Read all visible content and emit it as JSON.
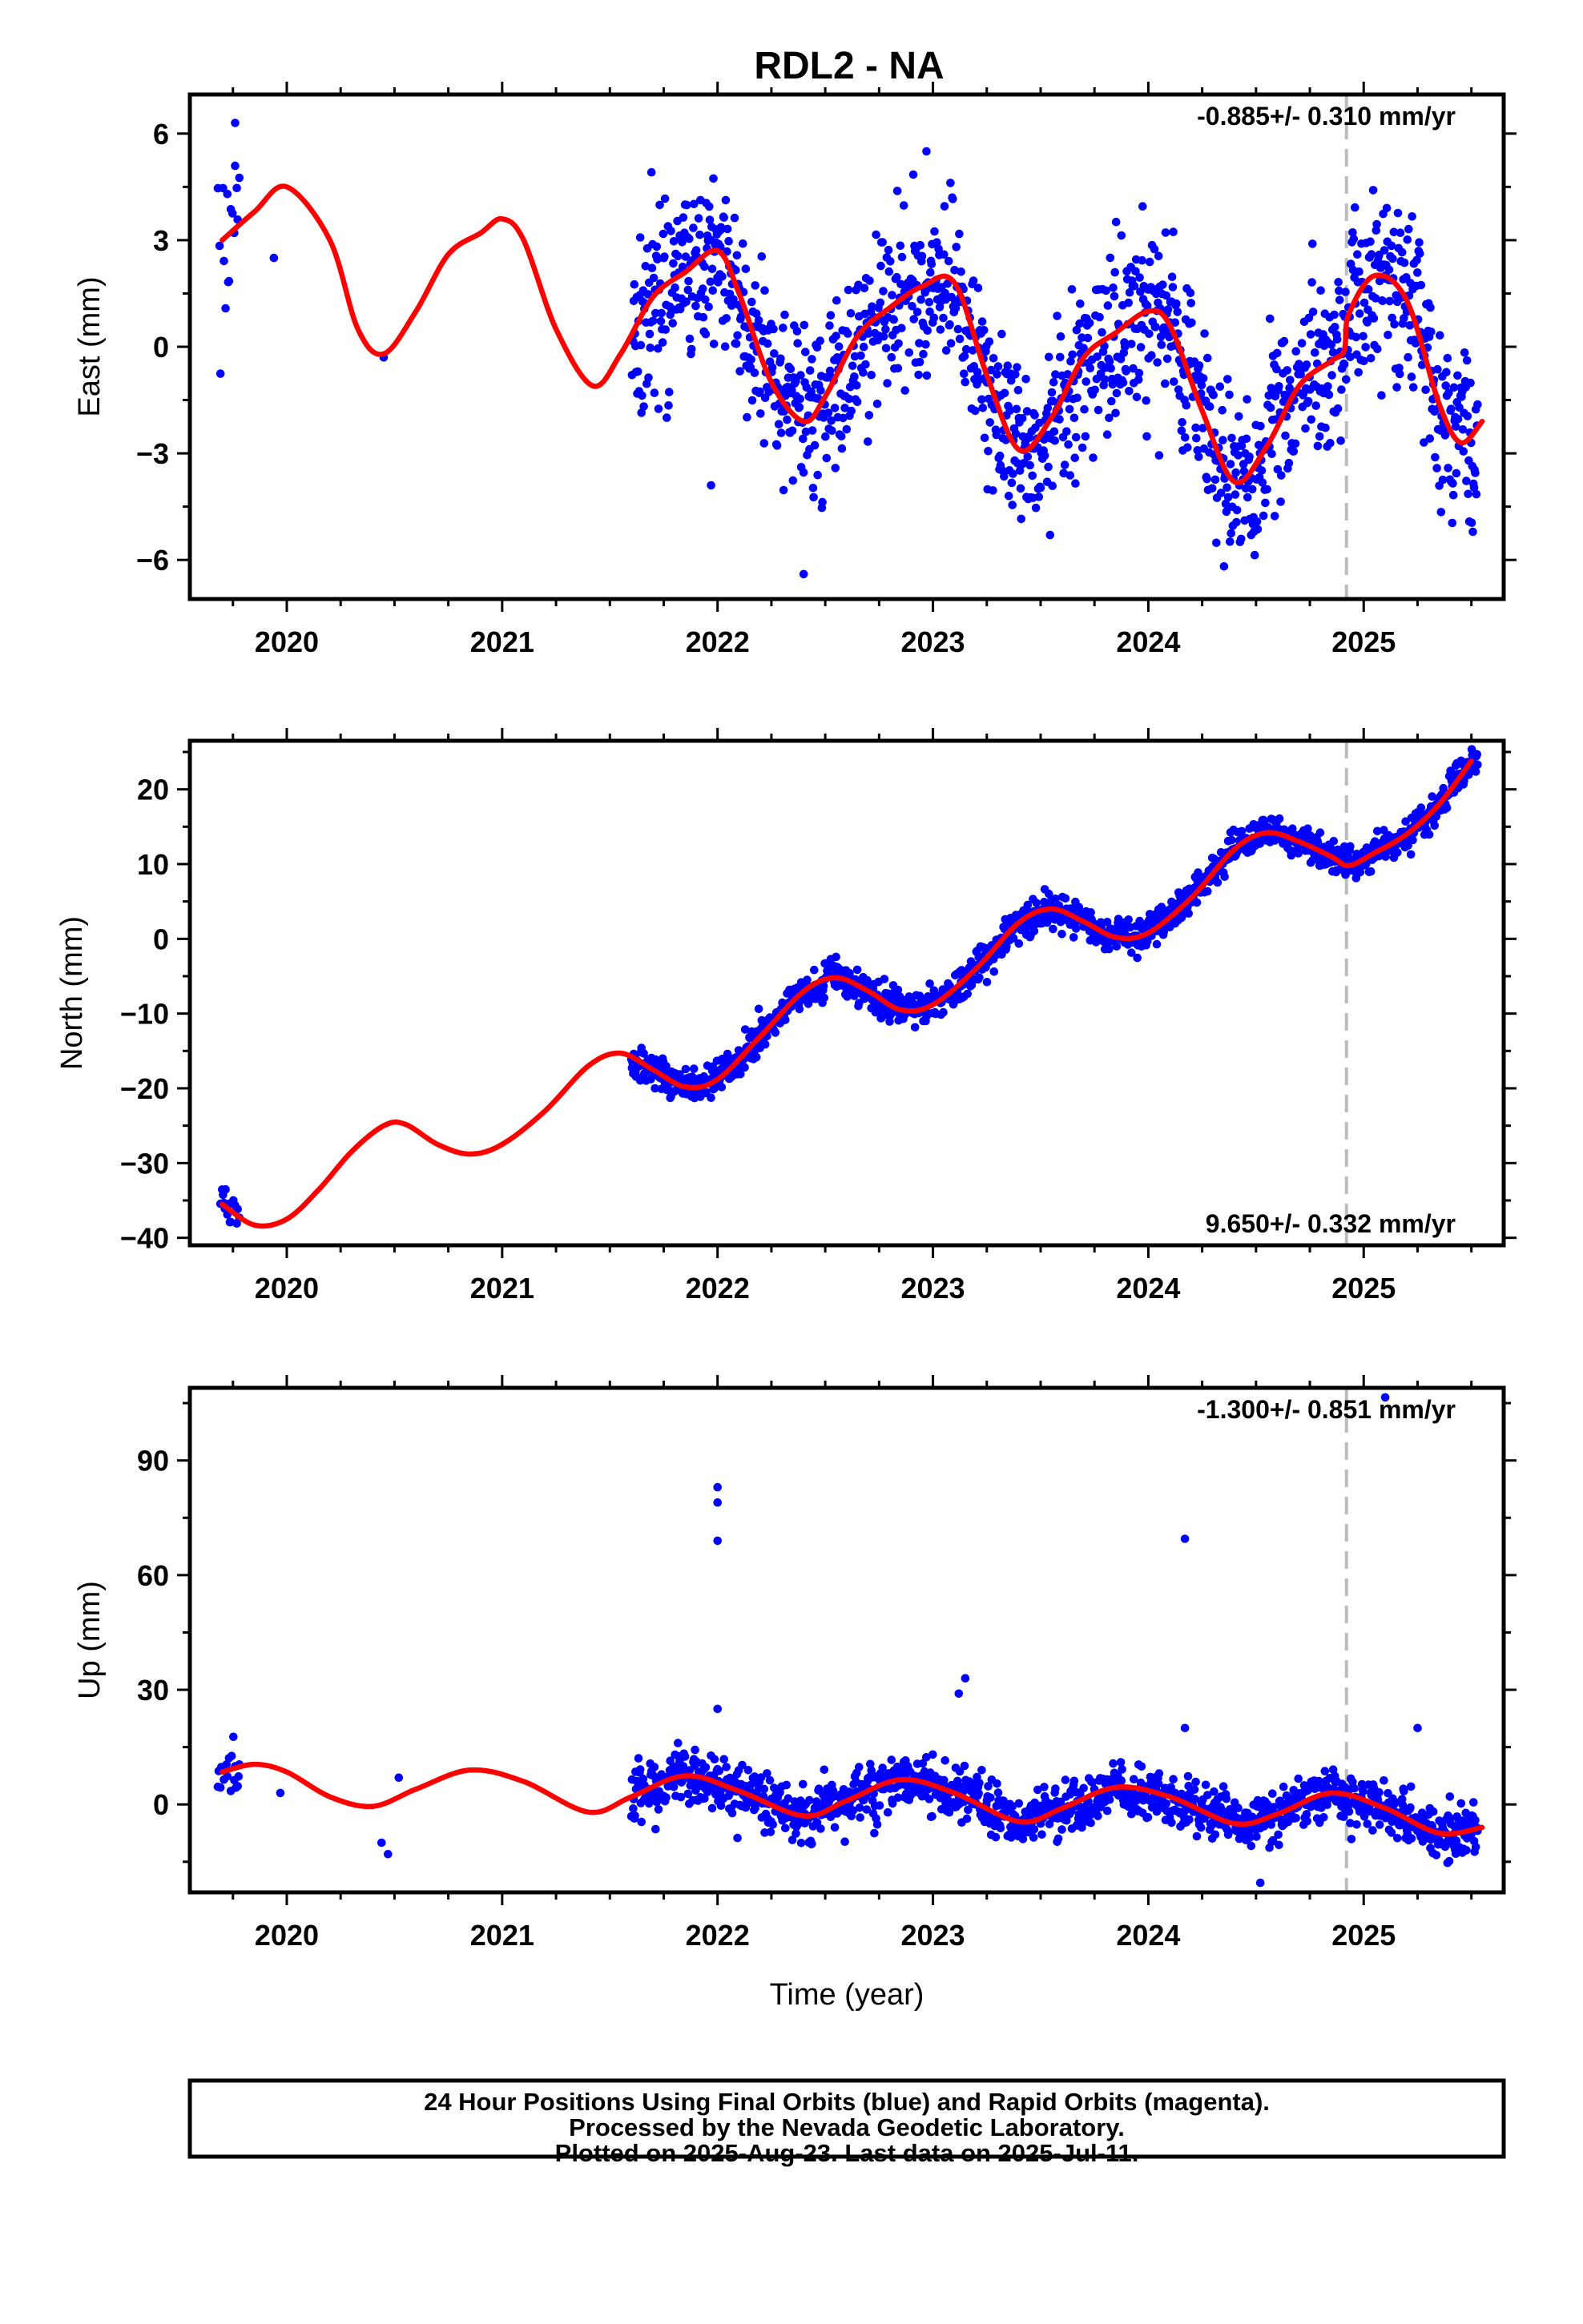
{
  "title": "RDL2 - NA",
  "colors": {
    "observations": "#0000ff",
    "model": "#ff0000",
    "event_line": "#bdbdbd",
    "frame": "#000000"
  },
  "event_year": 2024.92,
  "chart_data": [
    {
      "type": "scatter",
      "name": "east",
      "ylabel": "East (mm)",
      "xlim": [
        2019.55,
        2025.65
      ],
      "ylim": [
        -7.1,
        7.1
      ],
      "x_ticks": [
        2020,
        2021,
        2022,
        2023,
        2024,
        2025
      ],
      "x_tick_labels": [
        "2020",
        "2021",
        "2022",
        "2023",
        "2024",
        "2025"
      ],
      "y_ticks": [
        -6,
        -3,
        0,
        3,
        6
      ],
      "y_tick_labels": [
        "−6",
        "−3",
        "0",
        "3",
        "6"
      ],
      "rate_text": "-0.885+/- 0.310 mm/yr",
      "trend": -0.885,
      "seasonal": {
        "a1": 2.3,
        "phase1": 0.0,
        "a2": 0.3,
        "phase2": 0.8
      },
      "noise_sd": 1.25,
      "model_curve": {
        "x": [
          2019.7,
          2019.85,
          2020.0,
          2020.2,
          2020.33,
          2020.45,
          2020.6,
          2020.75,
          2020.9,
          2021.0,
          2021.1,
          2021.25,
          2021.42,
          2021.55,
          2021.7,
          2021.85,
          2022.0,
          2022.1,
          2022.25,
          2022.4,
          2022.5,
          2022.65,
          2022.8,
          2022.95,
          2023.1,
          2023.25,
          2023.4,
          2023.55,
          2023.7,
          2023.85,
          2024.0,
          2024.1,
          2024.25,
          2024.4,
          2024.55,
          2024.7,
          2024.85,
          2024.91,
          2024.93,
          2025.05,
          2025.2,
          2025.35,
          2025.45,
          2025.55
        ],
        "y": [
          3.0,
          3.8,
          4.5,
          3.0,
          0.5,
          -0.2,
          1.0,
          2.6,
          3.2,
          3.6,
          3.0,
          0.5,
          -1.1,
          -0.2,
          1.4,
          2.1,
          2.7,
          1.5,
          -1.0,
          -2.1,
          -1.4,
          0.3,
          1.1,
          1.7,
          1.8,
          -0.8,
          -2.9,
          -2.0,
          -0.3,
          0.4,
          1.0,
          0.6,
          -1.8,
          -3.8,
          -2.8,
          -1.1,
          -0.4,
          -0.1,
          0.9,
          2.0,
          1.3,
          -1.6,
          -2.7,
          -2.1
        ]
      },
      "outliers": {
        "x": [
          2019.76,
          2019.94,
          2020.45,
          2021.97,
          2022.4,
          2022.97
        ],
        "y": [
          6.3,
          2.5,
          -0.3,
          -3.9,
          -6.4,
          5.5
        ]
      }
    },
    {
      "type": "scatter",
      "name": "north",
      "ylabel": "North (mm)",
      "xlim": [
        2019.55,
        2025.65
      ],
      "ylim": [
        -41,
        26.5
      ],
      "x_ticks": [
        2020,
        2021,
        2022,
        2023,
        2024,
        2025
      ],
      "x_tick_labels": [
        "2020",
        "2021",
        "2022",
        "2023",
        "2024",
        "2025"
      ],
      "y_ticks": [
        -40,
        -30,
        -20,
        -10,
        0,
        10,
        20
      ],
      "y_tick_labels": [
        "−40",
        "−30",
        "−20",
        "−10",
        "0",
        "10",
        "20"
      ],
      "rate_text": "9.650+/- 0.332 mm/yr",
      "trend": 9.65,
      "seasonal": {
        "a1": 2.4,
        "phase1": 0.4,
        "a2": 0.0,
        "phase2": 0.0
      },
      "noise_sd": 1.1,
      "model_curve": {
        "x": [
          2019.7,
          2019.85,
          2020.0,
          2020.15,
          2020.3,
          2020.45,
          2020.55,
          2020.7,
          2020.85,
          2021.0,
          2021.2,
          2021.4,
          2021.55,
          2021.7,
          2021.85,
          2022.0,
          2022.2,
          2022.4,
          2022.55,
          2022.7,
          2022.85,
          2023.0,
          2023.2,
          2023.4,
          2023.55,
          2023.7,
          2023.85,
          2024.0,
          2024.2,
          2024.4,
          2024.55,
          2024.7,
          2024.85,
          2024.93,
          2025.05,
          2025.2,
          2025.35,
          2025.5
        ],
        "y": [
          -35.5,
          -38.3,
          -37.5,
          -33.5,
          -28.5,
          -25.0,
          -24.8,
          -27.5,
          -28.8,
          -27.5,
          -23.0,
          -17.0,
          -15.3,
          -17.5,
          -19.8,
          -18.8,
          -13.0,
          -7.0,
          -5.2,
          -7.0,
          -9.5,
          -8.8,
          -4.0,
          2.2,
          4.0,
          2.3,
          0.2,
          0.8,
          5.5,
          12.0,
          14.2,
          13.0,
          11.0,
          9.8,
          11.5,
          14.0,
          18.0,
          23.8
        ]
      },
      "outliers": {
        "x": [],
        "y": []
      }
    },
    {
      "type": "scatter",
      "name": "up",
      "ylabel": "Up (mm)",
      "xlabel": "Time (year)",
      "xlim": [
        2019.55,
        2025.65
      ],
      "ylim": [
        -23,
        109
      ],
      "x_ticks": [
        2020,
        2021,
        2022,
        2023,
        2024,
        2025
      ],
      "x_tick_labels": [
        "2020",
        "2021",
        "2022",
        "2023",
        "2024",
        "2025"
      ],
      "y_ticks": [
        0,
        30,
        60,
        90
      ],
      "y_tick_labels": [
        "0",
        "30",
        "60",
        "90"
      ],
      "rate_text": "-1.300+/- 0.851 mm/yr",
      "trend": -1.3,
      "seasonal": {
        "a1": 5.5,
        "phase1": 0.85,
        "a2": 0.0,
        "phase2": 0.0
      },
      "noise_sd": 3.3,
      "model_curve": {
        "x": [
          2019.7,
          2019.85,
          2020.0,
          2020.2,
          2020.4,
          2020.6,
          2020.85,
          2021.1,
          2021.4,
          2021.6,
          2021.85,
          2022.1,
          2022.4,
          2022.6,
          2022.85,
          2023.1,
          2023.4,
          2023.6,
          2023.85,
          2024.1,
          2024.4,
          2024.6,
          2024.85,
          2025.1,
          2025.35,
          2025.55
        ],
        "y": [
          8.5,
          10.5,
          8.5,
          2.0,
          -0.5,
          4.0,
          9.0,
          6.0,
          -2.0,
          2.0,
          7.5,
          3.5,
          -3.0,
          1.0,
          6.5,
          3.0,
          -4.5,
          -1.0,
          4.5,
          2.0,
          -5.0,
          -2.5,
          3.0,
          -1.0,
          -7.5,
          -6.0
        ]
      },
      "outliers": {
        "x": [
          2019.97,
          2020.44,
          2020.47,
          2020.52,
          2022.0,
          2022.0,
          2022.0,
          2022.0,
          2023.12,
          2023.15,
          2024.17,
          2024.17,
          2024.52,
          2025.1,
          2025.25
        ],
        "y": [
          3.0,
          -10.0,
          -13.0,
          7.0,
          83.0,
          79.0,
          69.0,
          25.0,
          29.0,
          33.0,
          69.5,
          20.0,
          -20.5,
          106.5,
          20.0
        ]
      }
    }
  ],
  "footer": {
    "line1": "24 Hour Positions Using Final Orbits (blue) and Rapid Orbits (magenta).",
    "line2": "Processed by the Nevada Geodetic Laboratory.",
    "line3": "Plotted on 2025-Aug-23. Last data on 2025-Jul-11."
  }
}
